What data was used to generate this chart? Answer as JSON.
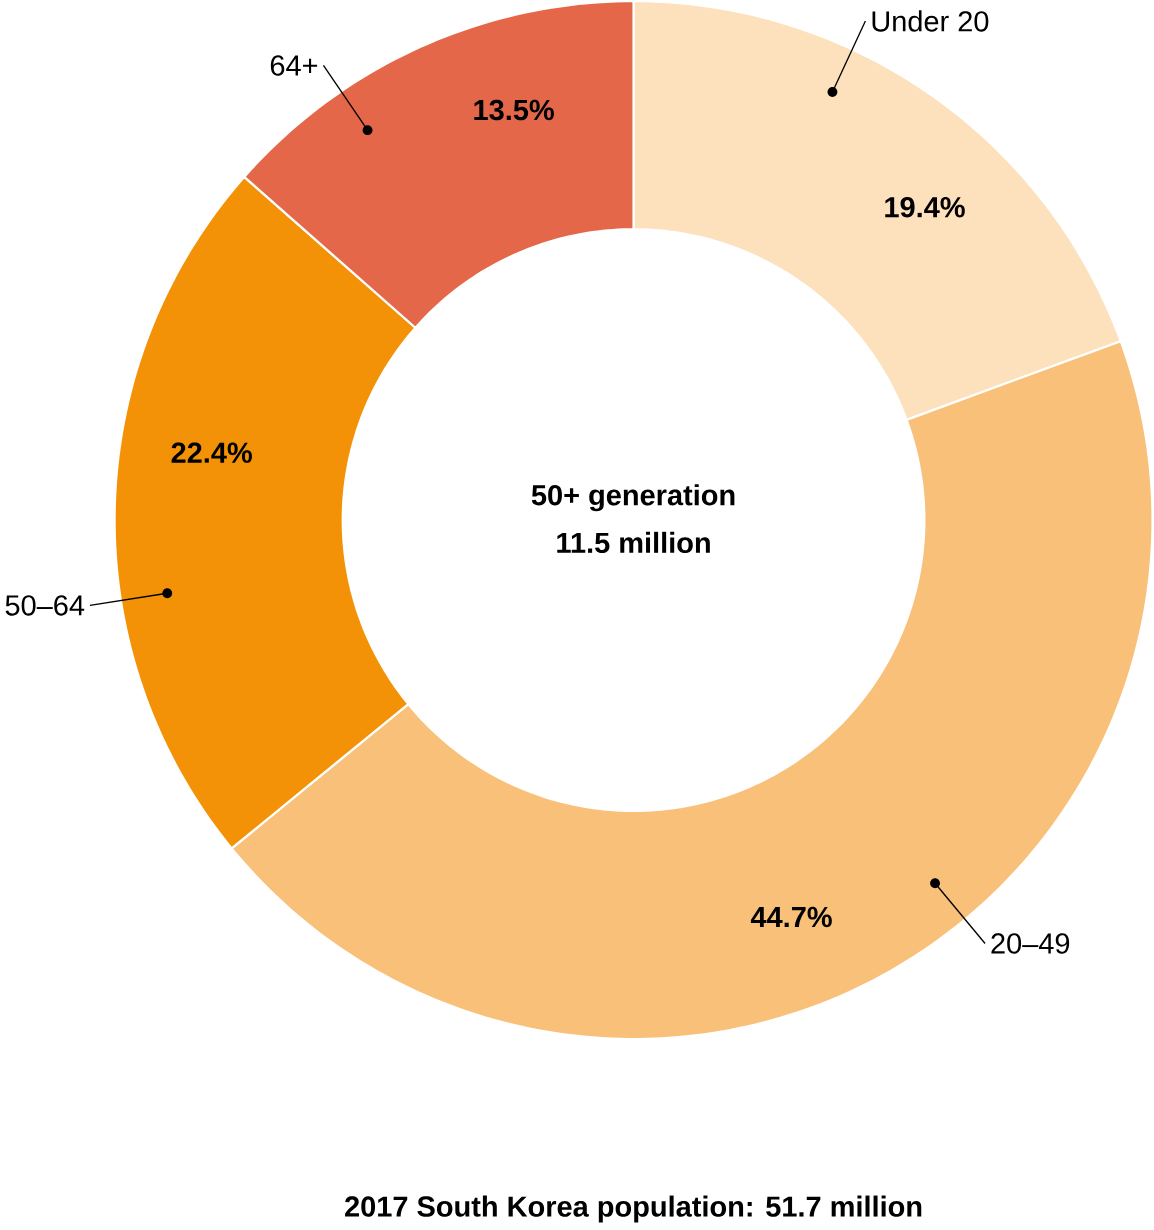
{
  "chart_data": {
    "type": "donut",
    "title": "2017 South Korea population: 51.7 million",
    "categories": [
      "Under 20",
      "20–49",
      "50–64",
      "64+"
    ],
    "values": [
      19.4,
      44.7,
      22.4,
      13.5
    ],
    "colors": [
      "#fde0bc",
      "#f9c07a",
      "#f39207",
      "#e5674a"
    ],
    "value_labels": [
      "19.4%",
      "44.7%",
      "22.4%",
      "13.5%"
    ],
    "annotations": [
      "50+ generation",
      "11.5 million"
    ]
  }
}
